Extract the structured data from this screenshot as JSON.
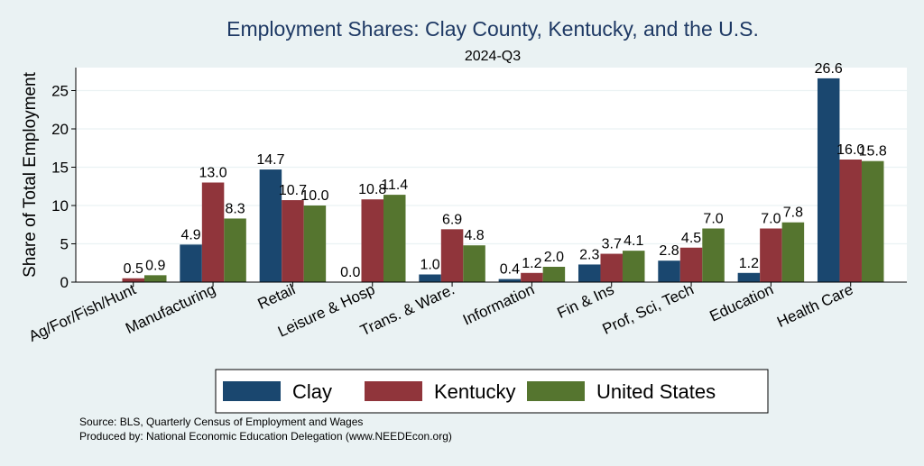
{
  "chart_data": {
    "type": "bar",
    "title": "Employment Shares: Clay County, Kentucky, and the U.S.",
    "subtitle": "2024-Q3",
    "xlabel": "",
    "ylabel": "Share of Total Employment",
    "ylim": [
      0,
      28
    ],
    "yticks": [
      0,
      5,
      10,
      15,
      20,
      25
    ],
    "grid": true,
    "legend_position": "bottom",
    "categories": [
      "Ag/For/Fish/Hunt",
      "Manufacturing",
      "Retail",
      "Leisure & Hosp",
      "Trans. & Ware.",
      "Information",
      "Fin & Ins",
      "Prof, Sci, Tech",
      "Education",
      "Health Care"
    ],
    "series": [
      {
        "name": "Clay",
        "color": "#1a476f",
        "values": [
          null,
          4.9,
          14.7,
          0.0,
          1.0,
          0.4,
          2.3,
          2.8,
          1.2,
          26.6
        ]
      },
      {
        "name": "Kentucky",
        "color": "#90353b",
        "values": [
          0.5,
          13.0,
          10.7,
          10.8,
          6.9,
          1.2,
          3.7,
          4.5,
          7.0,
          16.0
        ]
      },
      {
        "name": "United States",
        "color": "#55752f",
        "values": [
          0.9,
          8.3,
          10.0,
          11.4,
          4.8,
          2.0,
          4.1,
          7.0,
          7.8,
          15.8
        ]
      }
    ],
    "data_labels": [
      [
        "",
        "4.9",
        "14.7",
        "0.0",
        "1.0",
        "0.4",
        "2.3",
        "2.8",
        "1.2",
        "26.6"
      ],
      [
        "0.5",
        "13.0",
        "10.7",
        "10.8",
        "6.9",
        "1.2",
        "3.7",
        "4.5",
        "7.0",
        "16.0"
      ],
      [
        "0.9",
        "8.3",
        "10.0",
        "11.4",
        "4.8",
        "2.0",
        "4.1",
        "7.0",
        "7.8",
        "15.8"
      ]
    ]
  },
  "footer": {
    "source": "Source: BLS, Quarterly Census of Employment and Wages",
    "produced": "Produced by: National Economic Education Delegation (www.NEEDEcon.org)"
  },
  "colors": {
    "background": "#eaf2f3",
    "plot_background": "#ffffff",
    "title": "#1e3964",
    "grid": "#eaf2f3"
  }
}
